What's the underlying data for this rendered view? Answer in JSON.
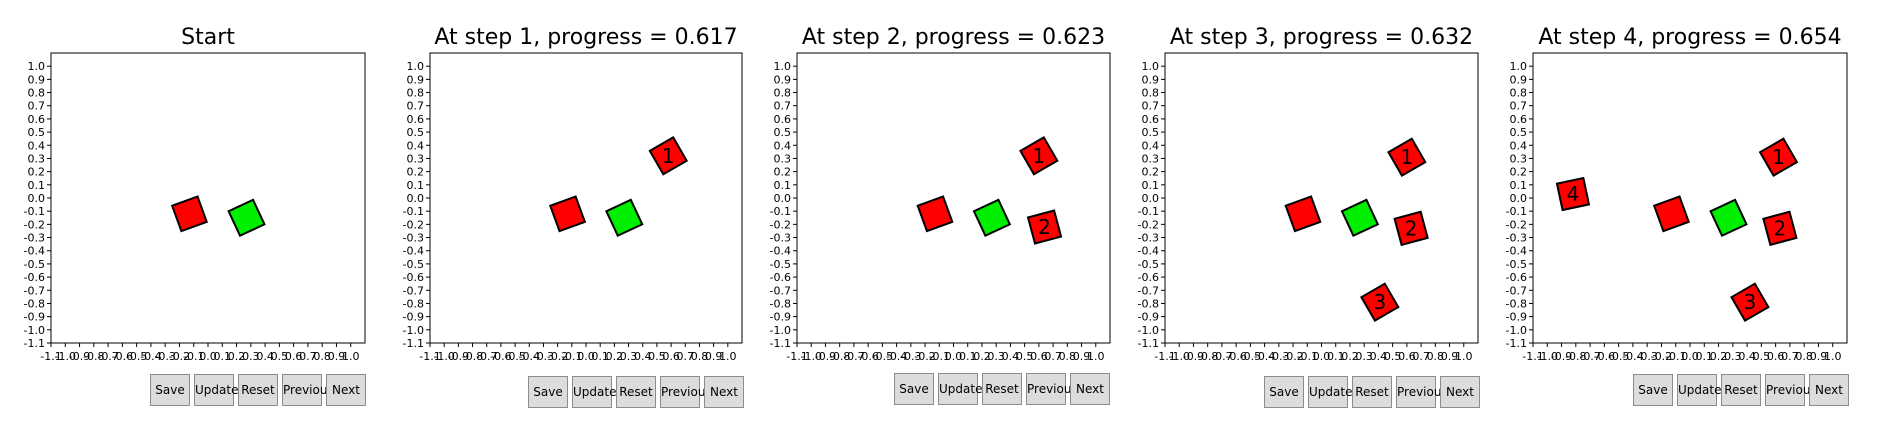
{
  "colors": {
    "fixed": "#ff0000",
    "moving": "#00ee00",
    "edge": "#000000"
  },
  "buttons": [
    "Save",
    "Update",
    "Reset",
    "Previous",
    "Next"
  ],
  "chart_data": [
    {
      "type": "scatter",
      "title": "Start",
      "xlim": [
        -1.1,
        1.1
      ],
      "ylim": [
        -1.1,
        1.1
      ],
      "ticks": [
        -1.1,
        -1.0,
        -0.9,
        -0.8,
        -0.7,
        -0.6,
        -0.5,
        -0.4,
        -0.3,
        -0.2,
        -0.1,
        0.0,
        0.1,
        0.2,
        0.3,
        0.4,
        0.5,
        0.6,
        0.7,
        0.8,
        0.9,
        1.0
      ],
      "squares": [
        {
          "x": -0.13,
          "y": -0.12,
          "angle": 20,
          "color": "red",
          "label": ""
        },
        {
          "x": 0.27,
          "y": -0.15,
          "angle": 25,
          "color": "green",
          "label": ""
        }
      ]
    },
    {
      "type": "scatter",
      "title": "At step 1, progress = 0.617",
      "xlim": [
        -1.1,
        1.1
      ],
      "ylim": [
        -1.1,
        1.1
      ],
      "ticks": [
        -1.1,
        -1.0,
        -0.9,
        -0.8,
        -0.7,
        -0.6,
        -0.5,
        -0.4,
        -0.3,
        -0.2,
        -0.1,
        0.0,
        0.1,
        0.2,
        0.3,
        0.4,
        0.5,
        0.6,
        0.7,
        0.8,
        0.9,
        1.0
      ],
      "squares": [
        {
          "x": -0.13,
          "y": -0.12,
          "angle": 20,
          "color": "red",
          "label": ""
        },
        {
          "x": 0.27,
          "y": -0.15,
          "angle": 25,
          "color": "green",
          "label": ""
        },
        {
          "x": 0.58,
          "y": 0.32,
          "angle": 30,
          "color": "red",
          "label": "1"
        }
      ]
    },
    {
      "type": "scatter",
      "title": "At step 2, progress = 0.623",
      "xlim": [
        -1.1,
        1.1
      ],
      "ylim": [
        -1.1,
        1.1
      ],
      "ticks": [
        -1.1,
        -1.0,
        -0.9,
        -0.8,
        -0.7,
        -0.6,
        -0.5,
        -0.4,
        -0.3,
        -0.2,
        -0.1,
        0.0,
        0.1,
        0.2,
        0.3,
        0.4,
        0.5,
        0.6,
        0.7,
        0.8,
        0.9,
        1.0
      ],
      "squares": [
        {
          "x": -0.13,
          "y": -0.12,
          "angle": 20,
          "color": "red",
          "label": ""
        },
        {
          "x": 0.27,
          "y": -0.15,
          "angle": 25,
          "color": "green",
          "label": ""
        },
        {
          "x": 0.6,
          "y": 0.32,
          "angle": 30,
          "color": "red",
          "label": "1"
        },
        {
          "x": 0.64,
          "y": -0.22,
          "angle": 15,
          "color": "red",
          "label": "2"
        }
      ]
    },
    {
      "type": "scatter",
      "title": "At step 3, progress = 0.632",
      "xlim": [
        -1.1,
        1.1
      ],
      "ylim": [
        -1.1,
        1.1
      ],
      "ticks": [
        -1.1,
        -1.0,
        -0.9,
        -0.8,
        -0.7,
        -0.6,
        -0.5,
        -0.4,
        -0.3,
        -0.2,
        -0.1,
        0.0,
        0.1,
        0.2,
        0.3,
        0.4,
        0.5,
        0.6,
        0.7,
        0.8,
        0.9,
        1.0
      ],
      "squares": [
        {
          "x": -0.13,
          "y": -0.12,
          "angle": 20,
          "color": "red",
          "label": ""
        },
        {
          "x": 0.27,
          "y": -0.15,
          "angle": 25,
          "color": "green",
          "label": ""
        },
        {
          "x": 0.6,
          "y": 0.31,
          "angle": 30,
          "color": "red",
          "label": "1"
        },
        {
          "x": 0.63,
          "y": -0.23,
          "angle": 15,
          "color": "red",
          "label": "2"
        },
        {
          "x": 0.41,
          "y": -0.79,
          "angle": 30,
          "color": "red",
          "label": "3"
        }
      ]
    },
    {
      "type": "scatter",
      "title": "At step 4, progress = 0.654",
      "xlim": [
        -1.1,
        1.1
      ],
      "ylim": [
        -1.1,
        1.1
      ],
      "ticks": [
        -1.1,
        -1.0,
        -0.9,
        -0.8,
        -0.7,
        -0.6,
        -0.5,
        -0.4,
        -0.3,
        -0.2,
        -0.1,
        0.0,
        0.1,
        0.2,
        0.3,
        0.4,
        0.5,
        0.6,
        0.7,
        0.8,
        0.9,
        1.0
      ],
      "squares": [
        {
          "x": -0.13,
          "y": -0.12,
          "angle": 20,
          "color": "red",
          "label": ""
        },
        {
          "x": 0.27,
          "y": -0.15,
          "angle": 25,
          "color": "green",
          "label": ""
        },
        {
          "x": 0.62,
          "y": 0.31,
          "angle": 30,
          "color": "red",
          "label": "1"
        },
        {
          "x": 0.63,
          "y": -0.23,
          "angle": 15,
          "color": "red",
          "label": "2"
        },
        {
          "x": 0.42,
          "y": -0.79,
          "angle": 30,
          "color": "red",
          "label": "3"
        },
        {
          "x": -0.82,
          "y": 0.03,
          "angle": 12,
          "color": "red",
          "label": "4"
        }
      ]
    }
  ]
}
